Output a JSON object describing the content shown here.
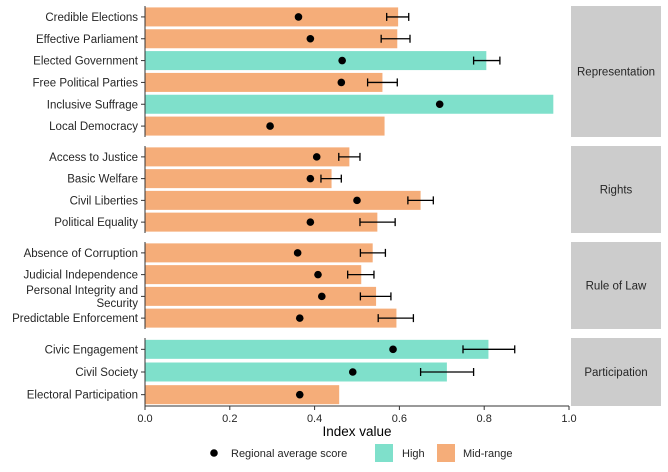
{
  "chart_data": {
    "type": "bar",
    "orientation": "horizontal",
    "xlabel": "Index value",
    "xlim": [
      0,
      1.0
    ],
    "xticks": [
      "0.0",
      "0.2",
      "0.4",
      "0.6",
      "0.8",
      "1.0"
    ],
    "grid": false,
    "legend_position": "bottom",
    "colors": {
      "High": "#7fe0cb",
      "Mid-range": "#f5ad79",
      "point": "#000000",
      "strip": "#cccccc"
    },
    "legend": {
      "point_label": "Regional average score",
      "categories": [
        "High",
        "Mid-range"
      ]
    },
    "panels": [
      {
        "name": "Representation",
        "items": [
          {
            "label": "Credible Elections",
            "value": 0.597,
            "category": "Mid-range",
            "avg": 0.362,
            "err": [
              0.57,
              0.622
            ]
          },
          {
            "label": "Effective Parliament",
            "value": 0.595,
            "category": "Mid-range",
            "avg": 0.39,
            "err": [
              0.557,
              0.625
            ]
          },
          {
            "label": "Elected Government",
            "value": 0.805,
            "category": "High",
            "avg": 0.465,
            "err": [
              0.775,
              0.837
            ]
          },
          {
            "label": "Free Political Parties",
            "value": 0.56,
            "category": "Mid-range",
            "avg": 0.463,
            "err": [
              0.525,
              0.595
            ]
          },
          {
            "label": "Inclusive Suffrage",
            "value": 0.963,
            "category": "High",
            "avg": 0.695,
            "err": null
          },
          {
            "label": "Local Democracy",
            "value": 0.565,
            "category": "Mid-range",
            "avg": 0.295,
            "err": null
          }
        ]
      },
      {
        "name": "Rights",
        "items": [
          {
            "label": "Access to Justice",
            "value": 0.482,
            "category": "Mid-range",
            "avg": 0.405,
            "err": [
              0.457,
              0.507
            ]
          },
          {
            "label": "Basic Welfare",
            "value": 0.44,
            "category": "Mid-range",
            "avg": 0.39,
            "err": [
              0.415,
              0.463
            ]
          },
          {
            "label": "Civil Liberties",
            "value": 0.65,
            "category": "Mid-range",
            "avg": 0.5,
            "err": [
              0.62,
              0.68
            ]
          },
          {
            "label": "Political Equality",
            "value": 0.548,
            "category": "Mid-range",
            "avg": 0.39,
            "err": [
              0.507,
              0.59
            ]
          }
        ]
      },
      {
        "name": "Rule of Law",
        "items": [
          {
            "label": "Absence of Corruption",
            "value": 0.537,
            "category": "Mid-range",
            "avg": 0.36,
            "err": [
              0.508,
              0.567
            ]
          },
          {
            "label": "Judicial Independence",
            "value": 0.51,
            "category": "Mid-range",
            "avg": 0.408,
            "err": [
              0.478,
              0.54
            ]
          },
          {
            "label": "Personal Integrity and\nSecurity",
            "value": 0.545,
            "category": "Mid-range",
            "avg": 0.417,
            "err": [
              0.508,
              0.58
            ]
          },
          {
            "label": "Predictable Enforcement",
            "value": 0.593,
            "category": "Mid-range",
            "avg": 0.365,
            "err": [
              0.55,
              0.633
            ]
          }
        ]
      },
      {
        "name": "Participation",
        "items": [
          {
            "label": "Civic Engagement",
            "value": 0.81,
            "category": "High",
            "avg": 0.585,
            "err": [
              0.75,
              0.872
            ]
          },
          {
            "label": "Civil Society",
            "value": 0.712,
            "category": "High",
            "avg": 0.49,
            "err": [
              0.65,
              0.775
            ]
          },
          {
            "label": "Electoral Participation",
            "value": 0.458,
            "category": "Mid-range",
            "avg": 0.365,
            "err": null
          }
        ]
      }
    ]
  }
}
